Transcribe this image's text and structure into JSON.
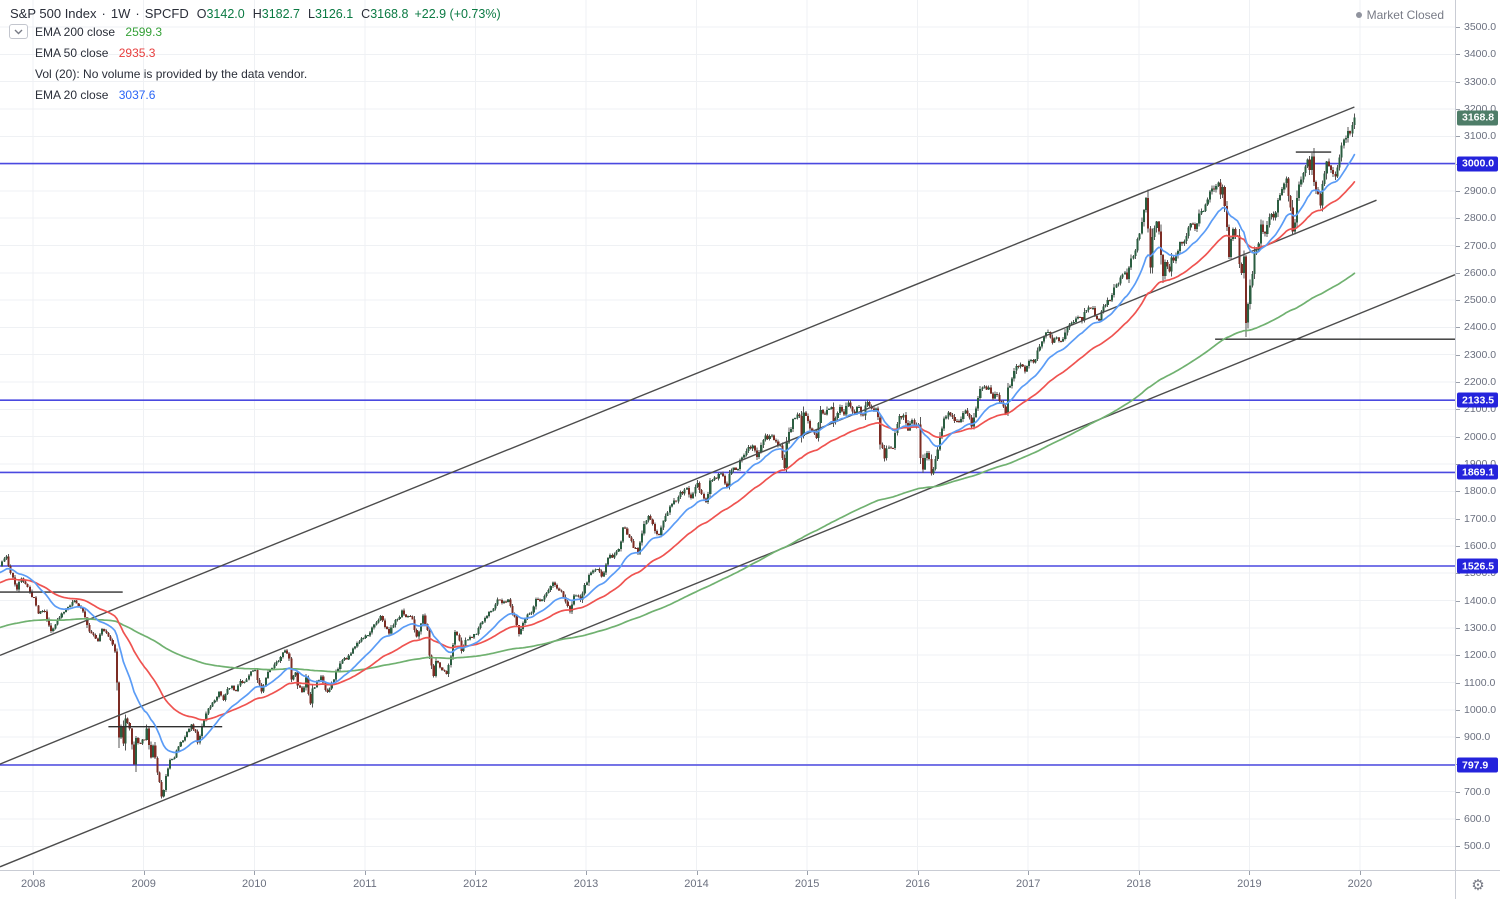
{
  "header": {
    "title": "S&P 500 Index",
    "sep": "·",
    "interval": "1W",
    "symbol": "SPCFD",
    "ohlc": [
      {
        "k": "O",
        "v": "3142.0"
      },
      {
        "k": "H",
        "v": "3182.7"
      },
      {
        "k": "L",
        "v": "3126.1"
      },
      {
        "k": "C",
        "v": "3168.8"
      }
    ],
    "change": "+22.9 (+0.73%)"
  },
  "legend": {
    "rows": [
      {
        "label": "EMA 200 close",
        "value": "2599.3",
        "color": "#36a138"
      },
      {
        "label": "EMA 50 close",
        "value": "2935.3",
        "color": "#e73d3d"
      },
      {
        "label": "Vol (20): No volume is provided by the data vendor.",
        "value": "",
        "color": "#2a2e39"
      },
      {
        "label": "EMA 20 close",
        "value": "3037.6",
        "color": "#2b66f6"
      }
    ]
  },
  "status": {
    "market_closed": "Market Closed"
  },
  "axis": {
    "gear_glyph": "⚙"
  },
  "colors": {
    "up": "#2b5e41",
    "down": "#7c2c24",
    "wick": "#565656",
    "ema20": "#5b9cf6",
    "ema50": "#ef5350",
    "ema200": "#70b170",
    "grid": "#eff1f4",
    "level_line": "#4a49e0",
    "trend": "#4c4c4c",
    "segment": "#2f2f2f"
  },
  "chart_data": {
    "type": "candlestick",
    "title": "S&P 500 Index",
    "interval": "weekly",
    "xlim": [
      2007.7,
      2020.86
    ],
    "ylim": [
      413.3,
      3598.9
    ],
    "x_ticks": [
      2008,
      2009,
      2010,
      2011,
      2012,
      2013,
      2014,
      2015,
      2016,
      2017,
      2018,
      2019,
      2020
    ],
    "y_tick_min": 500,
    "y_tick_max": 3500,
    "y_tick_step": 100,
    "last_candle": {
      "o": 3142.0,
      "h": 3182.7,
      "l": 3126.1,
      "c": 3168.8
    },
    "emas": [
      {
        "period": 200,
        "seed": 1299,
        "color_key": "ema200"
      },
      {
        "period": 50,
        "seed": 1463,
        "color_key": "ema50"
      },
      {
        "period": 20,
        "seed": 1500,
        "color_key": "ema20"
      }
    ],
    "levels": [
      {
        "price": 3168.8,
        "label": "3168.8",
        "bg": "#4e7d68",
        "line": false
      },
      {
        "price": 3000.0,
        "label": "3000.0",
        "bg": "#2423dc",
        "line": true
      },
      {
        "price": 2133.5,
        "label": "2133.5",
        "bg": "#2423dc",
        "line": true
      },
      {
        "price": 1869.1,
        "label": "1869.1",
        "bg": "#2423dc",
        "line": true
      },
      {
        "price": 1526.5,
        "label": "1526.5",
        "bg": "#2423dc",
        "line": true
      },
      {
        "price": 797.9,
        "label": "797.9",
        "bg": "#2423dc",
        "line": true
      }
    ],
    "trendlines": [
      {
        "t1": 2007.7,
        "p1": 1199,
        "t2": 2019.95,
        "p2": 3207
      },
      {
        "t1": 2007.7,
        "p1": 801,
        "t2": 2020.15,
        "p2": 2866
      },
      {
        "t1": 2007.7,
        "p1": 425,
        "t2": 2020.86,
        "p2": 2593
      }
    ],
    "h_segments": [
      {
        "t1": 2007.7,
        "t2": 2008.81,
        "price": 1431
      },
      {
        "t1": 2008.68,
        "t2": 2009.71,
        "price": 938
      },
      {
        "t1": 2019.42,
        "t2": 2019.74,
        "price": 3042
      },
      {
        "t1": 2018.69,
        "t2": 2020.86,
        "price": 2357
      }
    ],
    "close_anchors": [
      [
        2007.7,
        1526
      ],
      [
        2007.75,
        1562
      ],
      [
        2007.8,
        1500
      ],
      [
        2007.85,
        1440
      ],
      [
        2007.89,
        1481
      ],
      [
        2007.94,
        1460
      ],
      [
        2008.0,
        1411
      ],
      [
        2008.05,
        1353
      ],
      [
        2008.1,
        1360
      ],
      [
        2008.16,
        1288
      ],
      [
        2008.22,
        1330
      ],
      [
        2008.3,
        1370
      ],
      [
        2008.38,
        1400
      ],
      [
        2008.45,
        1360
      ],
      [
        2008.52,
        1280
      ],
      [
        2008.58,
        1252
      ],
      [
        2008.63,
        1296
      ],
      [
        2008.7,
        1255
      ],
      [
        2008.74,
        1213
      ],
      [
        2008.76,
        1099
      ],
      [
        2008.78,
        899
      ],
      [
        2008.8,
        940
      ],
      [
        2008.82,
        876
      ],
      [
        2008.84,
        968
      ],
      [
        2008.87,
        931
      ],
      [
        2008.89,
        873
      ],
      [
        2008.91,
        800
      ],
      [
        2008.93,
        896
      ],
      [
        2008.96,
        876
      ],
      [
        2009.0,
        890
      ],
      [
        2009.03,
        932
      ],
      [
        2009.06,
        826
      ],
      [
        2009.09,
        869
      ],
      [
        2009.12,
        770
      ],
      [
        2009.14,
        735
      ],
      [
        2009.17,
        683
      ],
      [
        2009.2,
        757
      ],
      [
        2009.24,
        816
      ],
      [
        2009.27,
        826
      ],
      [
        2009.31,
        866
      ],
      [
        2009.35,
        887
      ],
      [
        2009.39,
        919
      ],
      [
        2009.43,
        946
      ],
      [
        2009.47,
        920
      ],
      [
        2009.49,
        880
      ],
      [
        2009.53,
        940
      ],
      [
        2009.58,
        1004
      ],
      [
        2009.63,
        1026
      ],
      [
        2009.68,
        1066
      ],
      [
        2009.72,
        1036
      ],
      [
        2009.76,
        1076
      ],
      [
        2009.8,
        1087
      ],
      [
        2009.83,
        1069
      ],
      [
        2009.87,
        1106
      ],
      [
        2009.91,
        1102
      ],
      [
        2009.95,
        1126
      ],
      [
        2010.0,
        1145
      ],
      [
        2010.04,
        1092
      ],
      [
        2010.07,
        1066
      ],
      [
        2010.12,
        1139
      ],
      [
        2010.18,
        1166
      ],
      [
        2010.24,
        1194
      ],
      [
        2010.28,
        1217
      ],
      [
        2010.32,
        1187
      ],
      [
        2010.34,
        1111
      ],
      [
        2010.37,
        1136
      ],
      [
        2010.4,
        1088
      ],
      [
        2010.44,
        1065
      ],
      [
        2010.47,
        1118
      ],
      [
        2010.5,
        1023
      ],
      [
        2010.53,
        1078
      ],
      [
        2010.57,
        1103
      ],
      [
        2010.61,
        1122
      ],
      [
        2010.64,
        1072
      ],
      [
        2010.67,
        1065
      ],
      [
        2010.71,
        1110
      ],
      [
        2010.75,
        1149
      ],
      [
        2010.79,
        1183
      ],
      [
        2010.84,
        1184
      ],
      [
        2010.89,
        1224
      ],
      [
        2010.94,
        1244
      ],
      [
        2011.0,
        1272
      ],
      [
        2011.05,
        1283
      ],
      [
        2011.1,
        1320
      ],
      [
        2011.14,
        1343
      ],
      [
        2011.18,
        1304
      ],
      [
        2011.22,
        1279
      ],
      [
        2011.27,
        1328
      ],
      [
        2011.31,
        1340
      ],
      [
        2011.34,
        1363
      ],
      [
        2011.38,
        1340
      ],
      [
        2011.43,
        1331
      ],
      [
        2011.47,
        1268
      ],
      [
        2011.51,
        1316
      ],
      [
        2011.53,
        1345
      ],
      [
        2011.56,
        1292
      ],
      [
        2011.59,
        1199
      ],
      [
        2011.62,
        1123
      ],
      [
        2011.65,
        1178
      ],
      [
        2011.69,
        1154
      ],
      [
        2011.73,
        1131
      ],
      [
        2011.76,
        1164
      ],
      [
        2011.8,
        1238
      ],
      [
        2011.82,
        1285
      ],
      [
        2011.85,
        1253
      ],
      [
        2011.88,
        1216
      ],
      [
        2011.92,
        1255
      ],
      [
        2011.96,
        1265
      ],
      [
        2012.0,
        1278
      ],
      [
        2012.05,
        1315
      ],
      [
        2012.1,
        1343
      ],
      [
        2012.16,
        1370
      ],
      [
        2012.2,
        1404
      ],
      [
        2012.25,
        1397
      ],
      [
        2012.29,
        1403
      ],
      [
        2012.34,
        1353
      ],
      [
        2012.4,
        1278
      ],
      [
        2012.45,
        1335
      ],
      [
        2012.5,
        1356
      ],
      [
        2012.55,
        1406
      ],
      [
        2012.6,
        1403
      ],
      [
        2012.66,
        1438
      ],
      [
        2012.7,
        1466
      ],
      [
        2012.74,
        1444
      ],
      [
        2012.78,
        1433
      ],
      [
        2012.83,
        1380
      ],
      [
        2012.86,
        1360
      ],
      [
        2012.9,
        1418
      ],
      [
        2012.95,
        1402
      ],
      [
        2013.0,
        1466
      ],
      [
        2013.05,
        1503
      ],
      [
        2013.1,
        1515
      ],
      [
        2013.15,
        1488
      ],
      [
        2013.2,
        1556
      ],
      [
        2013.25,
        1569
      ],
      [
        2013.3,
        1588
      ],
      [
        2013.34,
        1667
      ],
      [
        2013.39,
        1631
      ],
      [
        2013.44,
        1593
      ],
      [
        2013.47,
        1573
      ],
      [
        2013.52,
        1680
      ],
      [
        2013.57,
        1710
      ],
      [
        2013.62,
        1655
      ],
      [
        2013.66,
        1640
      ],
      [
        2013.71,
        1710
      ],
      [
        2013.76,
        1745
      ],
      [
        2013.81,
        1762
      ],
      [
        2013.86,
        1798
      ],
      [
        2013.91,
        1812
      ],
      [
        2013.95,
        1775
      ],
      [
        2014.0,
        1831
      ],
      [
        2014.04,
        1790
      ],
      [
        2014.09,
        1760
      ],
      [
        2014.13,
        1839
      ],
      [
        2014.18,
        1846
      ],
      [
        2014.22,
        1866
      ],
      [
        2014.27,
        1816
      ],
      [
        2014.31,
        1878
      ],
      [
        2014.36,
        1878
      ],
      [
        2014.41,
        1924
      ],
      [
        2014.46,
        1963
      ],
      [
        2014.51,
        1967
      ],
      [
        2014.55,
        1925
      ],
      [
        2014.6,
        1988
      ],
      [
        2014.66,
        2003
      ],
      [
        2014.71,
        1982
      ],
      [
        2014.76,
        1968
      ],
      [
        2014.79,
        1886
      ],
      [
        2014.83,
        2018
      ],
      [
        2014.88,
        2064
      ],
      [
        2014.93,
        2075
      ],
      [
        2014.95,
        2002
      ],
      [
        2014.97,
        2089
      ],
      [
        2015.0,
        2058
      ],
      [
        2015.04,
        2020
      ],
      [
        2015.08,
        1995
      ],
      [
        2015.13,
        2097
      ],
      [
        2015.17,
        2081
      ],
      [
        2015.21,
        2108
      ],
      [
        2015.24,
        2053
      ],
      [
        2015.29,
        2108
      ],
      [
        2015.33,
        2081
      ],
      [
        2015.38,
        2126
      ],
      [
        2015.42,
        2092
      ],
      [
        2015.46,
        2109
      ],
      [
        2015.5,
        2077
      ],
      [
        2015.54,
        2127
      ],
      [
        2015.58,
        2104
      ],
      [
        2015.62,
        2103
      ],
      [
        2015.65,
        2071
      ],
      [
        2015.67,
        1971
      ],
      [
        2015.7,
        1921
      ],
      [
        2015.73,
        1961
      ],
      [
        2015.77,
        1958
      ],
      [
        2015.8,
        2014
      ],
      [
        2015.84,
        2075
      ],
      [
        2015.88,
        2080
      ],
      [
        2015.91,
        2023
      ],
      [
        2015.95,
        2061
      ],
      [
        2016.0,
        2044
      ],
      [
        2016.02,
        1922
      ],
      [
        2016.05,
        1880
      ],
      [
        2016.08,
        1940
      ],
      [
        2016.11,
        1918
      ],
      [
        2016.13,
        1865
      ],
      [
        2016.16,
        1918
      ],
      [
        2016.2,
        1999
      ],
      [
        2016.25,
        2073
      ],
      [
        2016.3,
        2080
      ],
      [
        2016.34,
        2058
      ],
      [
        2016.39,
        2065
      ],
      [
        2016.43,
        2096
      ],
      [
        2016.47,
        2071
      ],
      [
        2016.49,
        2037
      ],
      [
        2016.52,
        2103
      ],
      [
        2016.56,
        2175
      ],
      [
        2016.6,
        2183
      ],
      [
        2016.64,
        2180
      ],
      [
        2016.68,
        2139
      ],
      [
        2016.72,
        2153
      ],
      [
        2016.76,
        2126
      ],
      [
        2016.79,
        2085
      ],
      [
        2016.82,
        2180
      ],
      [
        2016.86,
        2213
      ],
      [
        2016.89,
        2259
      ],
      [
        2016.93,
        2264
      ],
      [
        2016.97,
        2239
      ],
      [
        2017.0,
        2277
      ],
      [
        2017.05,
        2271
      ],
      [
        2017.09,
        2316
      ],
      [
        2017.14,
        2367
      ],
      [
        2017.18,
        2383
      ],
      [
        2017.22,
        2344
      ],
      [
        2017.26,
        2363
      ],
      [
        2017.3,
        2349
      ],
      [
        2017.34,
        2381
      ],
      [
        2017.39,
        2416
      ],
      [
        2017.44,
        2432
      ],
      [
        2017.48,
        2425
      ],
      [
        2017.52,
        2463
      ],
      [
        2017.57,
        2470
      ],
      [
        2017.61,
        2441
      ],
      [
        2017.64,
        2426
      ],
      [
        2017.68,
        2477
      ],
      [
        2017.72,
        2500
      ],
      [
        2017.76,
        2519
      ],
      [
        2017.8,
        2557
      ],
      [
        2017.84,
        2582
      ],
      [
        2017.88,
        2602
      ],
      [
        2017.9,
        2578
      ],
      [
        2017.93,
        2652
      ],
      [
        2017.97,
        2681
      ],
      [
        2018.0,
        2743
      ],
      [
        2018.03,
        2786
      ],
      [
        2018.06,
        2873
      ],
      [
        2018.08,
        2762
      ],
      [
        2018.1,
        2620
      ],
      [
        2018.13,
        2732
      ],
      [
        2018.17,
        2787
      ],
      [
        2018.19,
        2752
      ],
      [
        2018.21,
        2588
      ],
      [
        2018.24,
        2640
      ],
      [
        2018.27,
        2605
      ],
      [
        2018.3,
        2656
      ],
      [
        2018.34,
        2663
      ],
      [
        2018.38,
        2713
      ],
      [
        2018.43,
        2735
      ],
      [
        2018.47,
        2780
      ],
      [
        2018.51,
        2760
      ],
      [
        2018.55,
        2818
      ],
      [
        2018.6,
        2850
      ],
      [
        2018.64,
        2897
      ],
      [
        2018.69,
        2905
      ],
      [
        2018.71,
        2930
      ],
      [
        2018.74,
        2886
      ],
      [
        2018.76,
        2914
      ],
      [
        2018.79,
        2768
      ],
      [
        2018.81,
        2658
      ],
      [
        2018.84,
        2723
      ],
      [
        2018.86,
        2760
      ],
      [
        2018.89,
        2737
      ],
      [
        2018.91,
        2633
      ],
      [
        2018.93,
        2600
      ],
      [
        2018.95,
        2660
      ],
      [
        2018.97,
        2417
      ],
      [
        2018.99,
        2486
      ],
      [
        2019.02,
        2596
      ],
      [
        2019.05,
        2670
      ],
      [
        2019.08,
        2707
      ],
      [
        2019.11,
        2776
      ],
      [
        2019.14,
        2743
      ],
      [
        2019.18,
        2804
      ],
      [
        2019.22,
        2803
      ],
      [
        2019.26,
        2867
      ],
      [
        2019.3,
        2906
      ],
      [
        2019.33,
        2946
      ],
      [
        2019.36,
        2881
      ],
      [
        2019.4,
        2752
      ],
      [
        2019.43,
        2873
      ],
      [
        2019.46,
        2942
      ],
      [
        2019.5,
        2990
      ],
      [
        2019.53,
        3014
      ],
      [
        2019.55,
        2977
      ],
      [
        2019.57,
        3026
      ],
      [
        2019.59,
        2932
      ],
      [
        2019.62,
        2889
      ],
      [
        2019.64,
        2847
      ],
      [
        2019.67,
        2926
      ],
      [
        2019.7,
        3007
      ],
      [
        2019.72,
        2992
      ],
      [
        2019.75,
        2962
      ],
      [
        2019.77,
        2952
      ],
      [
        2019.8,
        2986
      ],
      [
        2019.82,
        3023
      ],
      [
        2019.84,
        3067
      ],
      [
        2019.87,
        3093
      ],
      [
        2019.89,
        3120
      ],
      [
        2019.91,
        3110
      ],
      [
        2019.93,
        3141
      ],
      [
        2019.95,
        3168.8
      ]
    ]
  }
}
